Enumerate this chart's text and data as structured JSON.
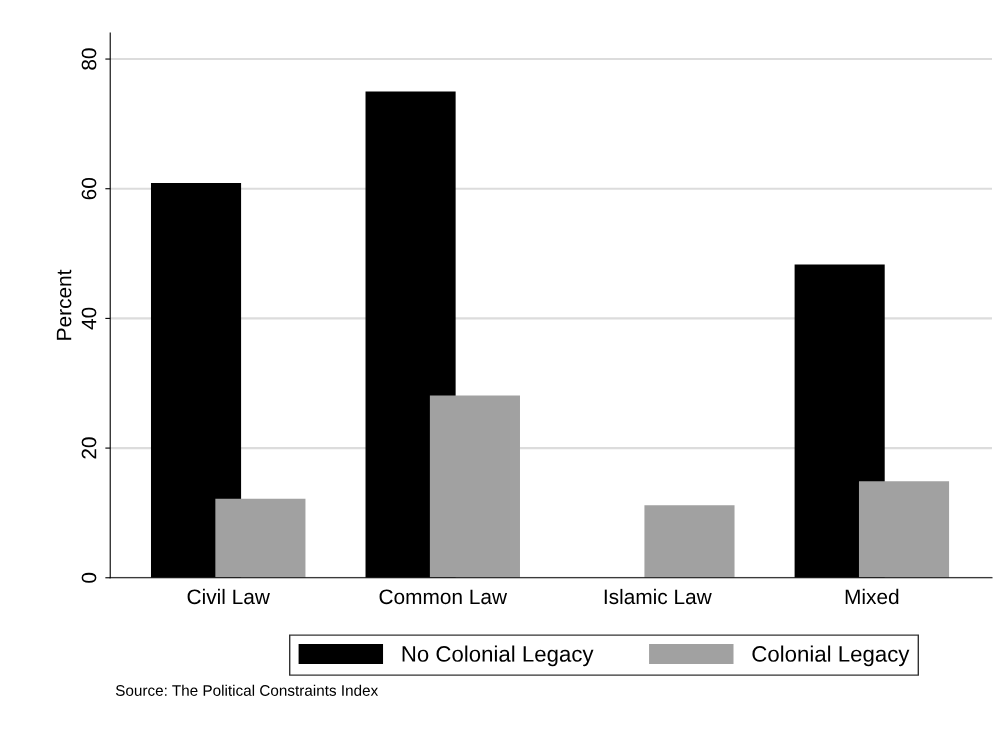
{
  "chart_data": {
    "type": "bar",
    "ylabel": "Percent",
    "categories": [
      "Civil Law",
      "Common Law",
      "Islamic Law",
      "Mixed"
    ],
    "series": [
      {
        "name": "No Colonial Legacy",
        "color": "#000000",
        "values": [
          60.9,
          75.0,
          0,
          48.3
        ]
      },
      {
        "name": "Colonial Legacy",
        "color": "#a1a1a1",
        "values": [
          12.2,
          28.1,
          11.2,
          14.9
        ]
      }
    ],
    "ylim": [
      0,
      84
    ],
    "yticks": [
      0,
      20,
      40,
      60,
      80
    ],
    "grid": "y",
    "legend": "bottom",
    "annotations": [
      "Source: The Political Constraints Index"
    ]
  }
}
